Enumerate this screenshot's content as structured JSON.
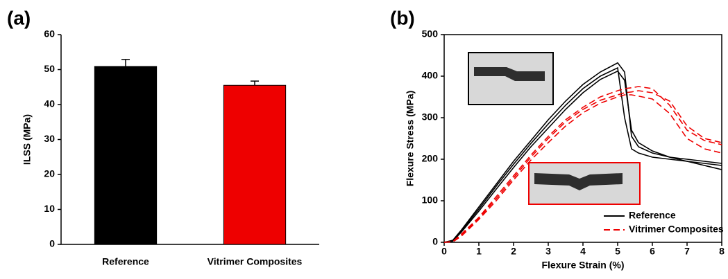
{
  "chart_data": [
    {
      "type": "bar",
      "panel_label": "(a)",
      "ylabel": "ILSS (MPa)",
      "categories": [
        "Reference",
        "Vitrimer Composites"
      ],
      "values": [
        50.9,
        45.5
      ],
      "errors": [
        2.0,
        1.2
      ],
      "colors": [
        "#000000",
        "#ee0000"
      ],
      "ylim": [
        0,
        60
      ],
      "yticks": [
        0,
        10,
        20,
        30,
        40,
        50,
        60
      ]
    },
    {
      "type": "line",
      "panel_label": "(b)",
      "xlabel": "Flexure Strain (%)",
      "ylabel": "Flexure Stress (MPa)",
      "x": [
        0,
        0.25,
        0.5,
        1,
        1.5,
        2,
        2.5,
        3,
        3.5,
        4,
        4.5,
        5,
        5.2,
        5.4,
        5.6,
        6,
        6.5,
        7,
        7.5,
        8
      ],
      "series": [
        {
          "name": "Reference",
          "color": "#000000",
          "dashed": false,
          "values": [
            0,
            5,
            30,
            85,
            140,
            195,
            245,
            295,
            340,
            380,
            410,
            432,
            410,
            255,
            230,
            215,
            205,
            195,
            185,
            175
          ]
        },
        {
          "color": "#000000",
          "dashed": false,
          "values": [
            0,
            4,
            28,
            80,
            135,
            188,
            238,
            285,
            330,
            370,
            400,
            420,
            300,
            225,
            215,
            205,
            200,
            195,
            190,
            185
          ]
        },
        {
          "color": "#000000",
          "dashed": false,
          "values": [
            0,
            3,
            25,
            75,
            128,
            180,
            230,
            275,
            320,
            360,
            392,
            412,
            390,
            270,
            240,
            220,
            205,
            200,
            195,
            190
          ]
        },
        {
          "name": "Vitrimer Composites",
          "color": "#ee0000",
          "dashed": true,
          "values": [
            0,
            2,
            20,
            60,
            110,
            160,
            210,
            255,
            295,
            325,
            350,
            365,
            370,
            372,
            375,
            370,
            330,
            270,
            245,
            235
          ]
        },
        {
          "color": "#ee0000",
          "dashed": true,
          "values": [
            0,
            2,
            18,
            58,
            105,
            155,
            205,
            250,
            290,
            320,
            342,
            355,
            360,
            362,
            365,
            360,
            340,
            280,
            250,
            240
          ]
        },
        {
          "color": "#ee0000",
          "dashed": true,
          "values": [
            0,
            1,
            15,
            55,
            100,
            150,
            198,
            240,
            280,
            312,
            335,
            350,
            355,
            355,
            352,
            345,
            310,
            250,
            225,
            215
          ]
        }
      ],
      "xlim": [
        0,
        8
      ],
      "xticks": [
        0,
        1,
        2,
        3,
        4,
        5,
        6,
        7,
        8
      ],
      "ylim": [
        0,
        500
      ],
      "yticks": [
        0,
        100,
        200,
        300,
        400,
        500
      ],
      "legend": "lower right"
    }
  ]
}
